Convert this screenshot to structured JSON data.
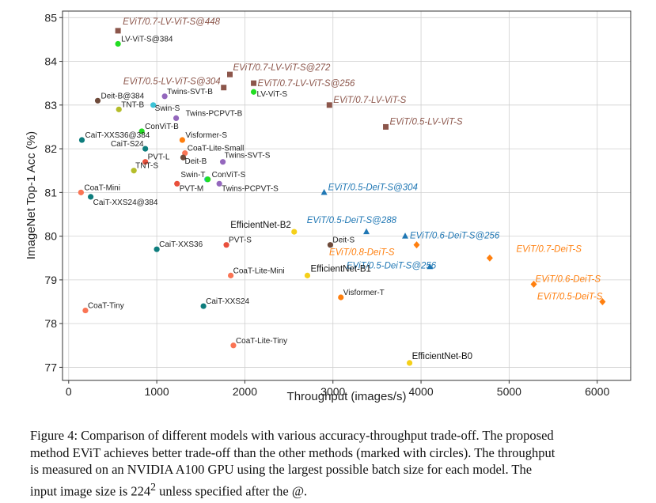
{
  "chart_data": {
    "type": "scatter",
    "xlabel": "Throughput (images/s)",
    "ylabel": "ImageNet Top-1 Acc (%)",
    "xlim": [
      -70,
      6380
    ],
    "ylim": [
      76.7,
      85.15
    ],
    "xticks": [
      0,
      1000,
      2000,
      3000,
      4000,
      5000,
      6000
    ],
    "yticks": [
      77,
      78,
      79,
      80,
      81,
      82,
      83,
      84,
      85
    ],
    "grid": true,
    "colors": {
      "evit_lv": "#8c564b",
      "evit_deit_orange": "#ff7f0e",
      "evit_deit_blue": "#1f77b4",
      "coat": "#fa7454",
      "cait": "#0e7d7d",
      "deit": "#6e4a3a",
      "tnt": "#b5bd2b",
      "swin": "#3cc3d6",
      "twins": "#9467bd",
      "convit": "#22dd22",
      "visformer": "#ff7f0e",
      "pvt": "#e9503c",
      "lvvit": "#22dd22",
      "efficientnet": "#f5d019"
    },
    "points": [
      {
        "name": "EViT/0.7-LV-ViT-S@448",
        "x": 560,
        "y": 84.7,
        "marker": "square",
        "color": "#8c564b",
        "label_style": "evit",
        "label_color": "#8c564b",
        "dx": 6,
        "dy": -8,
        "anchor": "start"
      },
      {
        "name": "EViT/0.7-LV-ViT-S@272",
        "x": 1830,
        "y": 83.7,
        "marker": "square",
        "color": "#8c564b",
        "label_style": "evit",
        "label_color": "#8c564b",
        "dx": 4,
        "dy": -5,
        "anchor": "start"
      },
      {
        "name": "EViT/0.5-LV-ViT-S@304",
        "x": 1760,
        "y": 83.4,
        "marker": "square",
        "color": "#8c564b",
        "label_style": "evit",
        "label_color": "#8c564b",
        "dx": -4,
        "dy": -4,
        "anchor": "end"
      },
      {
        "name": "EViT/0.7-LV-ViT-S@256",
        "x": 2100,
        "y": 83.5,
        "marker": "square",
        "color": "#8c564b",
        "label_style": "evit",
        "label_color": "#8c564b",
        "dx": 5,
        "dy": 4,
        "anchor": "start"
      },
      {
        "name": "EViT/0.7-LV-ViT-S",
        "x": 2960,
        "y": 83.0,
        "marker": "square",
        "color": "#8c564b",
        "label_style": "evit",
        "label_color": "#8c564b",
        "dx": 5,
        "dy": -3,
        "anchor": "start"
      },
      {
        "name": "EViT/0.5-LV-ViT-S",
        "x": 3600,
        "y": 82.5,
        "marker": "square",
        "color": "#8c564b",
        "label_style": "evit",
        "label_color": "#8c564b",
        "dx": 5,
        "dy": -3,
        "anchor": "start"
      },
      {
        "name": "EViT/0.5-DeiT-S@304",
        "x": 2900,
        "y": 81.0,
        "marker": "triangle",
        "color": "#1f77b4",
        "label_style": "evit",
        "label_color": "#1f77b4",
        "dx": 5,
        "dy": -3,
        "anchor": "start"
      },
      {
        "name": "EViT/0.5-DeiT-S@288",
        "x": 3380,
        "y": 80.1,
        "marker": "triangle",
        "color": "#1f77b4",
        "label_style": "evit",
        "label_color": "#1f77b4",
        "dx": 38,
        "dy": -11,
        "anchor": "end"
      },
      {
        "name": "EViT/0.6-DeiT-S@256",
        "x": 3820,
        "y": 80.0,
        "marker": "triangle",
        "color": "#1f77b4",
        "label_style": "evit",
        "label_color": "#1f77b4",
        "dx": 6,
        "dy": 3,
        "anchor": "start"
      },
      {
        "name": "EViT/0.5-DeiT-S@256",
        "x": 4100,
        "y": 79.3,
        "marker": "triangle",
        "color": "#1f77b4",
        "label_style": "evit",
        "label_color": "#1f77b4",
        "dx": 8,
        "dy": 2,
        "anchor": "end"
      },
      {
        "name": "EViT/0.8-DeiT-S",
        "x": 3950,
        "y": 79.8,
        "marker": "diamond",
        "color": "#ff7f0e",
        "label_style": "evit",
        "label_color": "#ff7f0e",
        "dx": -28,
        "dy": 13,
        "anchor": "end"
      },
      {
        "name": "EViT/0.7-DeiT-S",
        "x": 4780,
        "y": 79.5,
        "marker": "diamond",
        "color": "#ff7f0e",
        "label_style": "evit",
        "label_color": "#ff7f0e",
        "dx": 116,
        "dy": -8,
        "anchor": "end"
      },
      {
        "name": "EViT/0.6-DeiT-S",
        "x": 5280,
        "y": 78.9,
        "marker": "diamond",
        "color": "#ff7f0e",
        "label_style": "evit",
        "label_color": "#ff7f0e",
        "dx": 2,
        "dy": -3,
        "anchor": "start"
      },
      {
        "name": "EViT/0.5-DeiT-S",
        "x": 6060,
        "y": 78.5,
        "marker": "diamond",
        "color": "#ff7f0e",
        "label_style": "evit",
        "label_color": "#ff7f0e",
        "dx": 0,
        "dy": -3,
        "anchor": "end"
      },
      {
        "name": "LV-ViT-S@384",
        "x": 560,
        "y": 84.4,
        "marker": "circle",
        "color": "#22dd22",
        "label_style": "plain",
        "dx": 4,
        "dy": -3,
        "anchor": "start"
      },
      {
        "name": "LV-ViT-S",
        "x": 2100,
        "y": 83.3,
        "marker": "circle",
        "color": "#22dd22",
        "label_style": "plain",
        "dx": 4,
        "dy": 6,
        "anchor": "start"
      },
      {
        "name": "Deit-B@384",
        "x": 330,
        "y": 83.1,
        "marker": "circle",
        "color": "#6e4a3a",
        "label_style": "plain",
        "dx": 4,
        "dy": -3,
        "anchor": "start"
      },
      {
        "name": "TNT-B",
        "x": 570,
        "y": 82.9,
        "marker": "circle",
        "color": "#b5bd2b",
        "label_style": "plain",
        "dx": 3,
        "dy": -3,
        "anchor": "start"
      },
      {
        "name": "Swin-S",
        "x": 960,
        "y": 83.0,
        "marker": "circle",
        "color": "#3cc3d6",
        "label_style": "plain",
        "dx": 2,
        "dy": 7,
        "anchor": "start"
      },
      {
        "name": "Twins-SVT-B",
        "x": 1090,
        "y": 83.2,
        "marker": "circle",
        "color": "#9467bd",
        "label_style": "plain",
        "dx": 3,
        "dy": -3,
        "anchor": "start"
      },
      {
        "name": "Twins-PCPVT-B",
        "x": 1220,
        "y": 82.7,
        "marker": "circle",
        "color": "#9467bd",
        "label_style": "plain",
        "dx": 12,
        "dy": -3,
        "anchor": "start"
      },
      {
        "name": "CaiT-XXS36@384",
        "x": 150,
        "y": 82.2,
        "marker": "circle",
        "color": "#0e7d7d",
        "label_style": "plain",
        "dx": 4,
        "dy": -3,
        "anchor": "start"
      },
      {
        "name": "ConViT-B",
        "x": 830,
        "y": 82.4,
        "marker": "circle",
        "color": "#22dd22",
        "label_style": "plain",
        "dx": 4,
        "dy": -3,
        "anchor": "start"
      },
      {
        "name": "CaiT-S24",
        "x": 870,
        "y": 82.0,
        "marker": "circle",
        "color": "#0e7d7d",
        "label_style": "plain",
        "dx": -2,
        "dy": -3,
        "anchor": "end"
      },
      {
        "name": "Visformer-S",
        "x": 1290,
        "y": 82.2,
        "marker": "circle",
        "color": "#ff7f0e",
        "label_style": "plain",
        "dx": 4,
        "dy": -3,
        "anchor": "start"
      },
      {
        "name": "CoaT-Lite-Small",
        "x": 1320,
        "y": 81.9,
        "marker": "circle",
        "color": "#fa7454",
        "label_style": "plain",
        "dx": 3,
        "dy": -3,
        "anchor": "start"
      },
      {
        "name": "Deit-B",
        "x": 1300,
        "y": 81.8,
        "marker": "circle",
        "color": "#6e4a3a",
        "label_style": "plain",
        "dx": 2,
        "dy": 8,
        "anchor": "start"
      },
      {
        "name": "Twins-SVT-S",
        "x": 1750,
        "y": 81.7,
        "marker": "circle",
        "color": "#9467bd",
        "label_style": "plain",
        "dx": 2,
        "dy": -5,
        "anchor": "start"
      },
      {
        "name": "PVT-L",
        "x": 870,
        "y": 81.7,
        "marker": "circle",
        "color": "#e9503c",
        "label_style": "plain",
        "dx": 3,
        "dy": -3,
        "anchor": "start"
      },
      {
        "name": "TNT-S",
        "x": 740,
        "y": 81.5,
        "marker": "circle",
        "color": "#b5bd2b",
        "label_style": "plain",
        "dx": 2,
        "dy": -3,
        "anchor": "start"
      },
      {
        "name": "Swin-T",
        "x": 1570,
        "y": 81.3,
        "marker": "circle",
        "color": "#3cc3d6",
        "label_style": "plain",
        "dx": -2,
        "dy": -3,
        "anchor": "end"
      },
      {
        "name": "ConViT-S",
        "x": 1580,
        "y": 81.3,
        "marker": "circle",
        "color": "#22dd22",
        "label_style": "plain",
        "dx": 5,
        "dy": -3,
        "anchor": "start"
      },
      {
        "name": "PVT-M",
        "x": 1230,
        "y": 81.2,
        "marker": "circle",
        "color": "#e9503c",
        "label_style": "plain",
        "dx": 3,
        "dy": 9,
        "anchor": "start"
      },
      {
        "name": "Twins-PCPVT-S",
        "x": 1710,
        "y": 81.2,
        "marker": "circle",
        "color": "#9467bd",
        "label_style": "plain",
        "dx": 3,
        "dy": 9,
        "anchor": "start"
      },
      {
        "name": "CoaT-Mini",
        "x": 140,
        "y": 81.0,
        "marker": "circle",
        "color": "#fa7454",
        "label_style": "plain",
        "dx": 4,
        "dy": -3,
        "anchor": "start"
      },
      {
        "name": "CaiT-XXS24@384",
        "x": 250,
        "y": 80.9,
        "marker": "circle",
        "color": "#0e7d7d",
        "label_style": "plain",
        "dx": 3,
        "dy": 10,
        "anchor": "start"
      },
      {
        "name": "EfficientNet-B2",
        "x": 2560,
        "y": 80.1,
        "marker": "circle",
        "color": "#f5d019",
        "label_style": "eff",
        "dx": -4,
        "dy": -5,
        "anchor": "end"
      },
      {
        "name": "Deit-S",
        "x": 2970,
        "y": 79.8,
        "marker": "circle",
        "color": "#6e4a3a",
        "label_style": "plain",
        "dx": 3,
        "dy": -3,
        "anchor": "start"
      },
      {
        "name": "CaiT-XXS36",
        "x": 1000,
        "y": 79.7,
        "marker": "circle",
        "color": "#0e7d7d",
        "label_style": "plain",
        "dx": 3,
        "dy": -3,
        "anchor": "start"
      },
      {
        "name": "PVT-S",
        "x": 1790,
        "y": 79.8,
        "marker": "circle",
        "color": "#e9503c",
        "label_style": "plain",
        "dx": 3,
        "dy": -3,
        "anchor": "start"
      },
      {
        "name": "EfficientNet-B1",
        "x": 2710,
        "y": 79.1,
        "marker": "circle",
        "color": "#f5d019",
        "label_style": "eff",
        "dx": 4,
        "dy": -5,
        "anchor": "start"
      },
      {
        "name": "CoaT-Lite-Mini",
        "x": 1840,
        "y": 79.1,
        "marker": "circle",
        "color": "#fa7454",
        "label_style": "plain",
        "dx": 3,
        "dy": -3,
        "anchor": "start"
      },
      {
        "name": "Visformer-T",
        "x": 3090,
        "y": 78.6,
        "marker": "circle",
        "color": "#ff7f0e",
        "label_style": "plain",
        "dx": 3,
        "dy": -3,
        "anchor": "start"
      },
      {
        "name": "CoaT-Tiny",
        "x": 190,
        "y": 78.3,
        "marker": "circle",
        "color": "#fa7454",
        "label_style": "plain",
        "dx": 3,
        "dy": -3,
        "anchor": "start"
      },
      {
        "name": "CaiT-XXS24",
        "x": 1530,
        "y": 78.4,
        "marker": "circle",
        "color": "#0e7d7d",
        "label_style": "plain",
        "dx": 3,
        "dy": -3,
        "anchor": "start"
      },
      {
        "name": "CoaT-Lite-Tiny",
        "x": 1870,
        "y": 77.5,
        "marker": "circle",
        "color": "#fa7454",
        "label_style": "plain",
        "dx": 3,
        "dy": -3,
        "anchor": "start"
      },
      {
        "name": "EfficientNet-B0",
        "x": 3870,
        "y": 77.1,
        "marker": "circle",
        "color": "#f5d019",
        "label_style": "eff",
        "dx": 3,
        "dy": -5,
        "anchor": "start"
      }
    ]
  },
  "caption": {
    "lines": [
      "Figure 4: Comparison of different models with various accuracy-throughput trade-off. The proposed",
      "method EViT achieves better trade-off than the other methods (marked with circles). The throughput",
      "is measured on an NVIDIA A100 GPU using the largest possible batch size for each model. The"
    ],
    "last_pre": "input image size is 224",
    "last_sup": "2",
    "last_post": " unless specified after the @."
  }
}
